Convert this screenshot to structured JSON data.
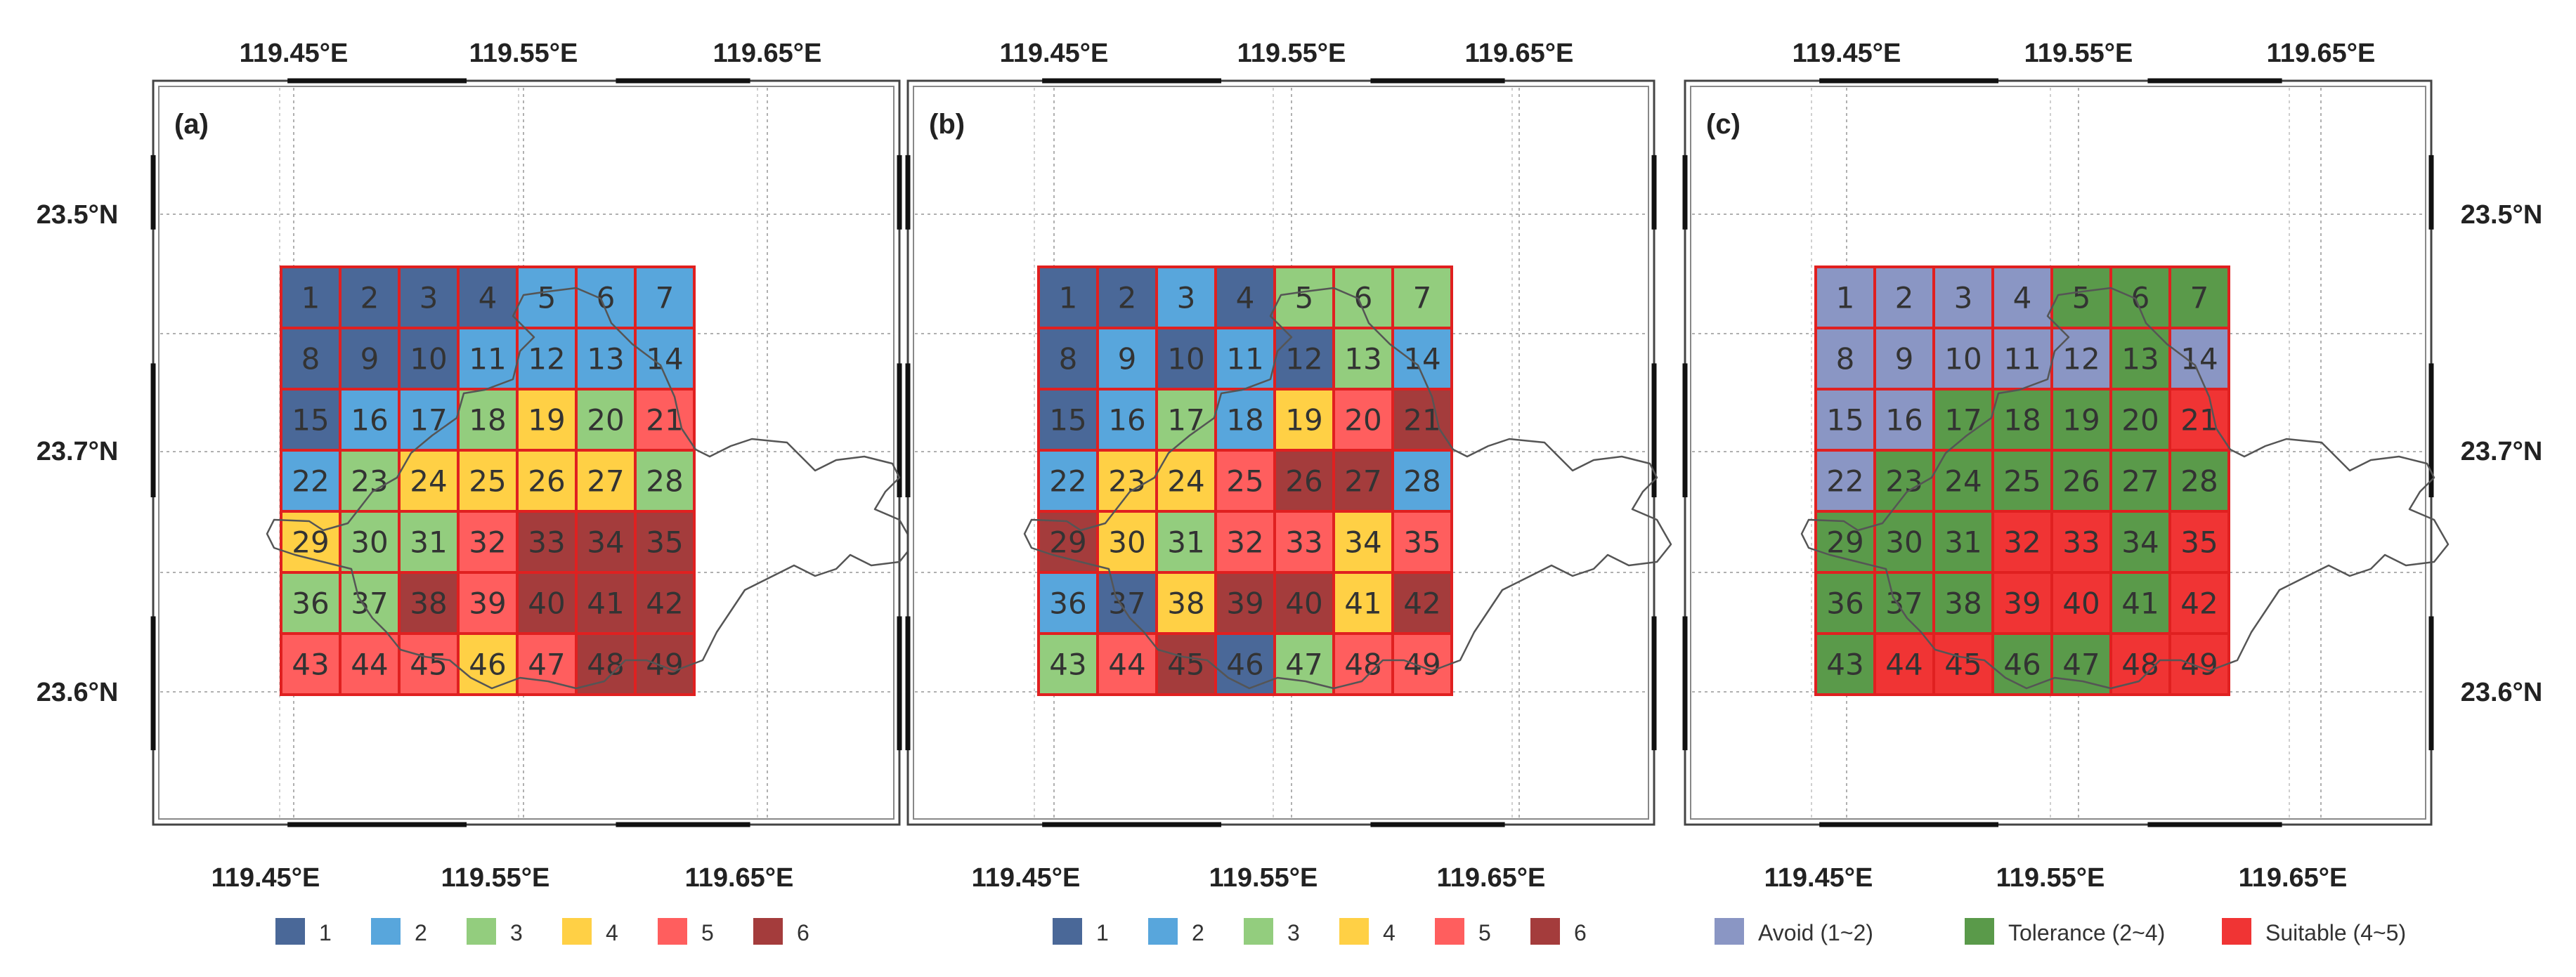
{
  "panels": [
    {
      "label": "(a)",
      "lon_top": [
        "119.45°E",
        "119.55°E",
        "119.65°E"
      ],
      "lon_bottom": [
        "119.45°E",
        "119.55°E",
        "119.65°E"
      ],
      "lat_left": [
        "23.5°N",
        "23.7°N",
        "23.6°N"
      ],
      "lat_right": [],
      "cells": [
        1,
        1,
        1,
        1,
        2,
        2,
        2,
        1,
        1,
        1,
        2,
        2,
        2,
        2,
        1,
        2,
        2,
        3,
        4,
        3,
        5,
        2,
        3,
        4,
        4,
        4,
        4,
        3,
        4,
        3,
        3,
        5,
        6,
        6,
        6,
        3,
        3,
        6,
        5,
        6,
        6,
        6,
        5,
        5,
        5,
        4,
        5,
        6,
        6
      ],
      "legend": [
        {
          "label": "1",
          "color": "#4a6898"
        },
        {
          "label": "2",
          "color": "#58a6dc"
        },
        {
          "label": "3",
          "color": "#93cd7e"
        },
        {
          "label": "4",
          "color": "#ffd045"
        },
        {
          "label": "5",
          "color": "#ff5e5e"
        },
        {
          "label": "6",
          "color": "#a43c3c"
        }
      ]
    },
    {
      "label": "(b)",
      "lon_top": [
        "119.45°E",
        "119.55°E",
        "119.65°E"
      ],
      "lon_bottom": [
        "119.45°E",
        "119.55°E",
        "119.65°E"
      ],
      "lat_left": [],
      "lat_right": [],
      "cells": [
        1,
        1,
        2,
        1,
        3,
        3,
        3,
        1,
        2,
        1,
        2,
        1,
        3,
        2,
        1,
        2,
        3,
        2,
        4,
        5,
        6,
        2,
        4,
        4,
        5,
        6,
        6,
        2,
        6,
        4,
        3,
        5,
        5,
        4,
        5,
        2,
        1,
        4,
        6,
        6,
        4,
        6,
        3,
        5,
        6,
        1,
        3,
        5,
        5
      ],
      "legend": [
        {
          "label": "1",
          "color": "#4a6898"
        },
        {
          "label": "2",
          "color": "#58a6dc"
        },
        {
          "label": "3",
          "color": "#93cd7e"
        },
        {
          "label": "4",
          "color": "#ffd045"
        },
        {
          "label": "5",
          "color": "#ff5e5e"
        },
        {
          "label": "6",
          "color": "#a43c3c"
        }
      ]
    },
    {
      "label": "(c)",
      "lon_top": [
        "119.45°E",
        "119.55°E",
        "119.65°E"
      ],
      "lon_bottom": [
        "119.45°E",
        "119.55°E",
        "119.65°E"
      ],
      "lat_left": [],
      "lat_right": [
        "23.5°N",
        "23.7°N",
        "23.6°N"
      ],
      "cells": [
        1,
        1,
        1,
        1,
        2,
        2,
        2,
        1,
        1,
        1,
        1,
        1,
        2,
        1,
        1,
        1,
        2,
        2,
        2,
        2,
        3,
        1,
        2,
        2,
        2,
        2,
        2,
        2,
        2,
        2,
        2,
        3,
        3,
        2,
        3,
        2,
        2,
        2,
        3,
        3,
        2,
        3,
        2,
        3,
        3,
        2,
        2,
        3,
        3
      ],
      "legend": [
        {
          "label": "Avoid (1~2)",
          "color": "#8a96c4"
        },
        {
          "label": "Tolerance (2~4)",
          "color": "#5a9a4a"
        },
        {
          "label": "Suitable (4~5)",
          "color": "#f03434"
        }
      ]
    }
  ]
}
